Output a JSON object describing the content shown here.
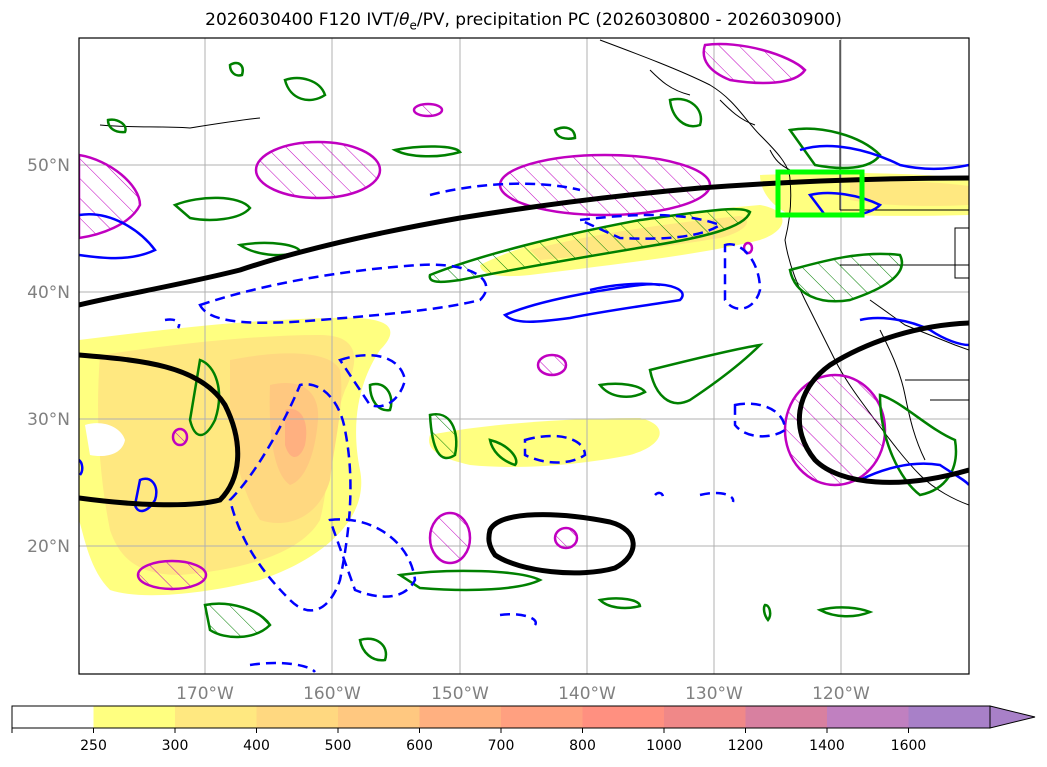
{
  "title": {
    "prefix": "2026030400 F120 IVT/",
    "theta": "θ",
    "sub": "e",
    "suffix": "/PV, precipitation PC (2026030800 - 2026030900)"
  },
  "lat_labels": [
    "50°N",
    "40°N",
    "30°N",
    "20°N"
  ],
  "lon_labels": [
    "170°W",
    "160°W",
    "150°W",
    "140°W",
    "130°W",
    "120°W"
  ],
  "colorbar": {
    "levels": [
      "250",
      "300",
      "400",
      "500",
      "600",
      "700",
      "800",
      "1000",
      "1200",
      "1400",
      "1600"
    ],
    "colors": [
      "#ffffff",
      "#ffff80",
      "#ffe880",
      "#ffd880",
      "#ffc880",
      "#ffb080",
      "#ffa080",
      "#ff9080",
      "#f08888",
      "#d880a0",
      "#c080c0",
      "#a880c8"
    ],
    "extend": "max"
  },
  "colors": {
    "geopotential_contour": "#000000",
    "theta_e_positive": "#0000ff",
    "pv_contour": "#008000",
    "precip_hatch": "#c000c0",
    "highlight_box": "#00ff00",
    "grid": "#b0b0b0"
  }
}
